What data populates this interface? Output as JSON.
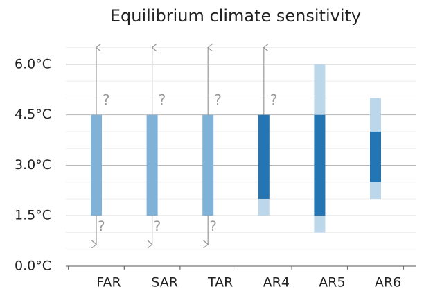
{
  "chart_data": {
    "type": "range",
    "title": "Equilibrium climate sensitivity",
    "categories": [
      "FAR",
      "SAR",
      "TAR",
      "AR4",
      "AR5",
      "AR6"
    ],
    "bars": [
      [
        {
          "low": 1.5,
          "high": 4.5,
          "color": "#80b2d8"
        }
      ],
      [
        {
          "low": 1.5,
          "high": 4.5,
          "color": "#80b2d8"
        }
      ],
      [
        {
          "low": 1.5,
          "high": 4.5,
          "color": "#80b2d8"
        }
      ],
      [
        {
          "low": 1.5,
          "high": 4.5,
          "color": "#bcd6ea"
        },
        {
          "low": 2.0,
          "high": 4.5,
          "color": "#2475b4"
        }
      ],
      [
        {
          "low": 1.0,
          "high": 6.0,
          "color": "#bcd6ea"
        },
        {
          "low": 1.5,
          "high": 4.5,
          "color": "#2475b4"
        }
      ],
      [
        {
          "low": 2.0,
          "high": 5.0,
          "color": "#bcd6ea"
        },
        {
          "low": 2.5,
          "high": 4.0,
          "color": "#2475b4"
        }
      ]
    ],
    "upper_arrow_tips": [
      6.5,
      6.5,
      6.5,
      6.5,
      null,
      null
    ],
    "upper_arrow_labels": [
      "?",
      "?",
      "?",
      "?",
      null,
      null
    ],
    "lower_arrow_tips": [
      0.65,
      0.65,
      0.65,
      null,
      null,
      null
    ],
    "lower_arrow_labels": [
      "?",
      "?",
      "?",
      null,
      null,
      null
    ],
    "arrow_color": "#999999",
    "ylim": [
      0,
      6.6
    ],
    "yticks": [
      {
        "value": 0,
        "label": "0.0°C"
      },
      {
        "value": 1.5,
        "label": "1.5°C"
      },
      {
        "value": 3.0,
        "label": "3.0°C"
      },
      {
        "value": 4.5,
        "label": "4.5°C"
      },
      {
        "value": 6.0,
        "label": "6.0°C"
      }
    ],
    "minor_yticks": [
      0.5,
      1.0,
      2.0,
      2.5,
      3.5,
      4.0,
      5.0,
      5.5,
      6.5
    ],
    "grid": true
  }
}
